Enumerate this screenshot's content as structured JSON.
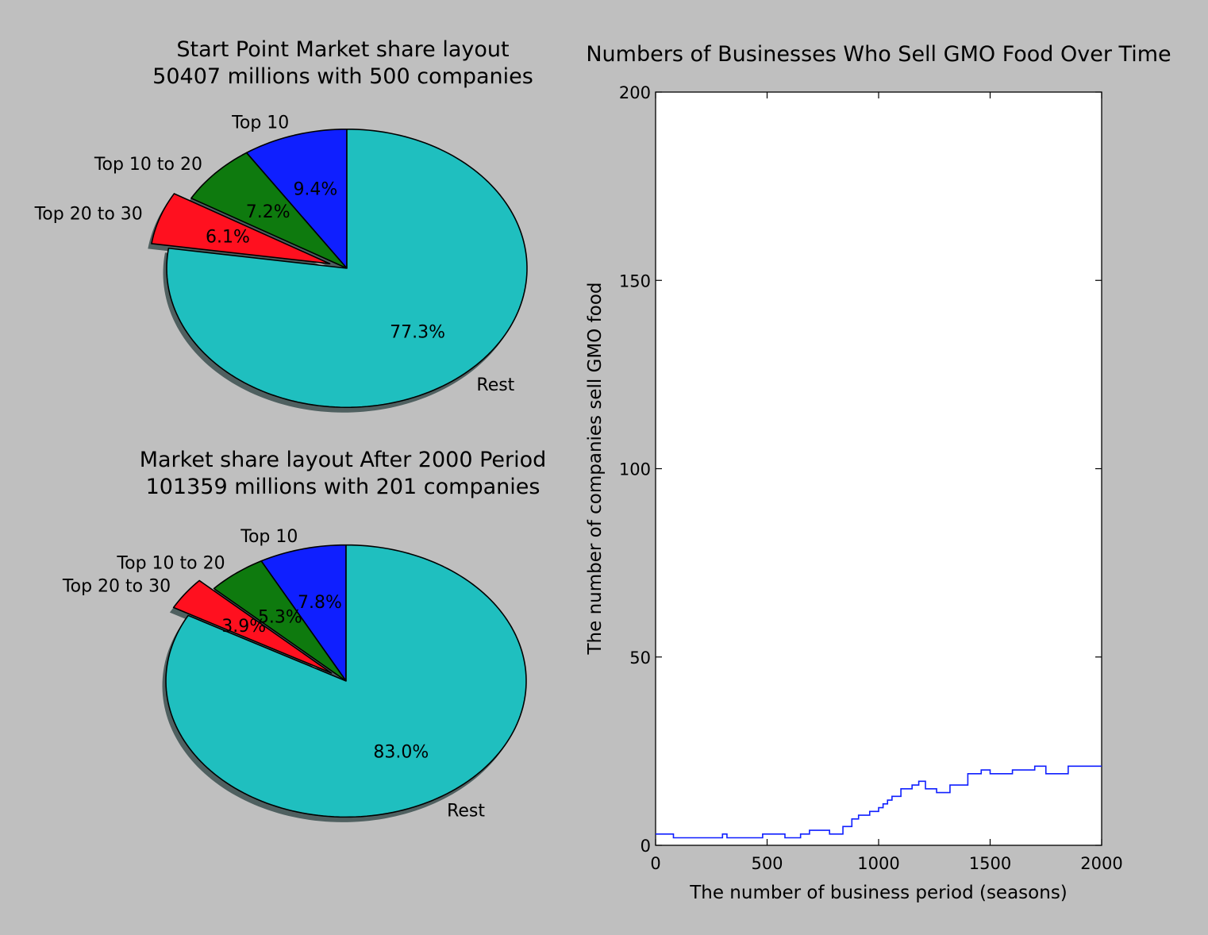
{
  "chart_data": [
    {
      "type": "pie",
      "title_line1": "Start Point Market share layout",
      "title_line2": "50407 millions with 500 companies",
      "labels": [
        "Top 10",
        "Top 10 to 20",
        "Top 20 to 30",
        "Rest"
      ],
      "values": [
        9.4,
        7.2,
        6.1,
        77.3
      ],
      "autopct": [
        "9.4%",
        "7.2%",
        "6.1%",
        "77.3%"
      ],
      "colors": [
        "#0f1fff",
        "#0e7a0e",
        "#ff101f",
        "#1fbfbf"
      ],
      "exploded": [
        "Top 20 to 30"
      ],
      "shadow": true,
      "start_angle_deg": 90,
      "direction": "counterclockwise"
    },
    {
      "type": "pie",
      "title_line1": "Market share layout After 2000 Period",
      "title_line2": "101359 millions with 201 companies",
      "labels": [
        "Top 10",
        "Top 10 to 20",
        "Top 20 to 30",
        "Rest"
      ],
      "values": [
        7.8,
        5.3,
        3.9,
        83.0
      ],
      "autopct": [
        "7.8%",
        "5.3%",
        "3.9%",
        "83.0%"
      ],
      "colors": [
        "#0f1fff",
        "#0e7a0e",
        "#ff101f",
        "#1fbfbf"
      ],
      "exploded": [
        "Top 20 to 30"
      ],
      "shadow": true,
      "start_angle_deg": 90,
      "direction": "counterclockwise"
    },
    {
      "type": "line",
      "title": "Numbers of Businesses Who Sell GMO Food Over Time",
      "xlabel": "The number of business period (seasons)",
      "ylabel": "The number of companies sell GMO food",
      "xlim": [
        0,
        2000
      ],
      "ylim": [
        0,
        200
      ],
      "xticks": [
        0,
        500,
        1000,
        1500,
        2000
      ],
      "yticks": [
        0,
        50,
        100,
        150,
        200
      ],
      "grid": false,
      "line_color": "#0f1fff",
      "series": [
        {
          "x": [
            0,
            80,
            80,
            300,
            300,
            320,
            320,
            480,
            480,
            580,
            580,
            650,
            650,
            690,
            690,
            780,
            780,
            840,
            840,
            880,
            880,
            910,
            910,
            960,
            960,
            1000,
            1000,
            1020,
            1020,
            1040,
            1040,
            1060,
            1060,
            1100,
            1100,
            1150,
            1150,
            1180,
            1180,
            1210,
            1210,
            1260,
            1260,
            1320,
            1320,
            1400,
            1400,
            1460,
            1460,
            1500,
            1500,
            1600,
            1600,
            1700,
            1700,
            1750,
            1750,
            1850,
            1850,
            2000
          ],
          "y": [
            3,
            3,
            2,
            2,
            3,
            3,
            2,
            2,
            3,
            3,
            2,
            2,
            3,
            3,
            4,
            4,
            3,
            3,
            5,
            5,
            7,
            7,
            8,
            8,
            9,
            9,
            10,
            10,
            11,
            11,
            12,
            12,
            13,
            13,
            15,
            15,
            16,
            16,
            17,
            17,
            15,
            15,
            14,
            14,
            16,
            16,
            19,
            19,
            20,
            20,
            19,
            19,
            20,
            20,
            21,
            21,
            19,
            19,
            21,
            21
          ]
        }
      ]
    }
  ]
}
